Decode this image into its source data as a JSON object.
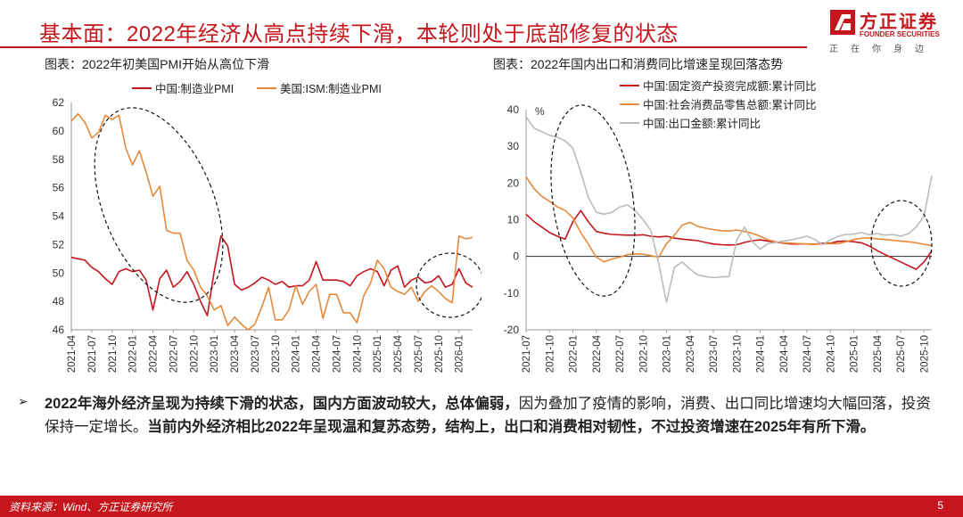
{
  "header": {
    "title": "基本面：2022年经济从高点持续下滑，本轮则处于底部修复的状态",
    "brand_cn": "方正证券",
    "brand_en": "FOUNDER SECURITIES",
    "brand_slogan": "正在你身边",
    "accent_color": "#c4161c"
  },
  "summary": {
    "bold1": "2022年海外经济呈现为持续下滑的状态，国内方面波动较大，总体偏弱，",
    "normal1": "因为叠加了疫情的影响，消费、出口同比增速均大幅回落，投资保持一定增长。",
    "bold2": "当前内外经济相比2022年呈现温和复苏态势，结构上，出口和消费相对韧性，不过投资增速在2025年有所下滑。"
  },
  "footer": {
    "source": "资料来源：Wind、方正证券研究所",
    "page": "5"
  },
  "chart_data": [
    {
      "type": "line",
      "caption": "图表：2022年初美国PMI开始从高位下滑",
      "ylim": [
        46,
        62
      ],
      "yticks": [
        46,
        48,
        50,
        52,
        54,
        56,
        58,
        60,
        62
      ],
      "xticks": [
        "2021-04",
        "2021-07",
        "2021-10",
        "2022-01",
        "2022-04",
        "2022-07",
        "2022-10",
        "2023-01",
        "2023-04",
        "2023-07",
        "2023-10",
        "2024-01",
        "2024-04",
        "2024-07",
        "2024-10",
        "2025-01",
        "2025-04",
        "2025-07",
        "2025-10",
        "2026-01"
      ],
      "x_start": "2021-04",
      "series": [
        {
          "name": "中国:制造业PMI",
          "color": "#c4161c",
          "values": [
            51.1,
            51.0,
            50.9,
            50.4,
            50.1,
            49.6,
            49.2,
            50.1,
            50.3,
            50.1,
            50.2,
            49.5,
            47.4,
            49.6,
            50.2,
            49.0,
            49.4,
            50.1,
            49.2,
            48.0,
            47.0,
            50.1,
            52.6,
            51.9,
            49.2,
            48.8,
            49.0,
            49.3,
            49.7,
            49.5,
            49.2,
            49.4,
            49.0,
            49.1,
            49.1,
            49.5,
            50.8,
            49.5,
            49.5,
            49.5,
            49.4,
            49.1,
            49.8,
            50.1,
            50.3,
            50.1,
            49.1,
            50.2,
            50.5,
            49.0,
            49.5,
            49.7,
            49.3,
            49.4,
            49.8,
            49.0,
            49.2,
            50.3,
            49.3,
            49.0
          ]
        },
        {
          "name": "美国:ISM:制造业PMI",
          "color": "#e8893a",
          "values": [
            60.7,
            61.2,
            60.6,
            59.5,
            59.9,
            61.1,
            60.8,
            61.1,
            58.8,
            57.6,
            58.6,
            57.1,
            55.4,
            56.1,
            53.0,
            52.8,
            52.8,
            50.9,
            50.2,
            49.0,
            48.4,
            47.4,
            47.7,
            46.3,
            46.9,
            46.4,
            46.0,
            46.4,
            47.6,
            49.0,
            46.7,
            46.7,
            47.4,
            49.1,
            47.8,
            48.7,
            49.2,
            46.8,
            48.5,
            48.5,
            47.2,
            47.2,
            46.5,
            48.4,
            49.3,
            50.9,
            50.3,
            49.0,
            48.7,
            48.5,
            49.0,
            48.0,
            48.7,
            49.1,
            48.7,
            48.2,
            47.9,
            52.6,
            52.4,
            52.5
          ]
        }
      ]
    },
    {
      "type": "line",
      "caption": "图表：2022年国内出口和消费同比增速呈现回落态势",
      "ylabel": "%",
      "ylim": [
        -20,
        40
      ],
      "yticks": [
        -20,
        -10,
        0,
        10,
        20,
        30,
        40
      ],
      "xticks": [
        "2021-07",
        "2021-10",
        "2022-01",
        "2022-04",
        "2022-07",
        "2022-10",
        "2023-01",
        "2023-04",
        "2023-07",
        "2023-10",
        "2024-01",
        "2024-04",
        "2024-07",
        "2024-10",
        "2025-01",
        "2025-04",
        "2025-07",
        "2025-10",
        "2026-01"
      ],
      "x_start": "2021-07",
      "series": [
        {
          "name": "中国:固定资产投资完成额:累计同比",
          "color": "#c4161c",
          "values": [
            11.5,
            9.5,
            8.0,
            6.5,
            5.5,
            4.7,
            9.5,
            12.5,
            9.4,
            6.8,
            6.3,
            6.0,
            5.9,
            5.8,
            5.8,
            5.9,
            5.5,
            5.3,
            5.5,
            5.0,
            4.7,
            4.5,
            4.3,
            3.8,
            3.4,
            3.2,
            3.1,
            3.2,
            3.8,
            4.3,
            4.5,
            4.2,
            3.9,
            3.6,
            3.4,
            3.4,
            3.4,
            3.3,
            3.6,
            3.6,
            4.1,
            4.2,
            4.0,
            3.7,
            2.8,
            1.6,
            0.5,
            -0.5,
            -1.5,
            -2.5,
            -3.5,
            -1.5,
            1.5
          ]
        },
        {
          "name": "中国:社会消费品零售总额:累计同比",
          "color": "#e8893a",
          "values": [
            21.7,
            18.5,
            16.4,
            15.0,
            13.5,
            12.5,
            10.5,
            6.5,
            3.3,
            -0.2,
            -1.5,
            -0.7,
            -0.2,
            0.5,
            0.7,
            0.6,
            0.2,
            -0.2,
            3.5,
            5.8,
            8.5,
            9.3,
            8.2,
            7.7,
            7.3,
            7.0,
            6.9,
            7.2,
            6.8,
            6.3,
            5.5,
            4.5,
            4.0,
            3.7,
            3.6,
            3.5,
            3.4,
            3.3,
            3.4,
            3.5,
            3.5,
            4.0,
            4.6,
            5.0,
            5.0,
            4.8,
            4.6,
            4.4,
            4.2,
            4.0,
            3.7,
            3.3,
            2.9
          ]
        },
        {
          "name": "中国:出口金额:累计同比",
          "color": "#bbbbbb",
          "values": [
            38.0,
            35.0,
            34.0,
            33.0,
            32.5,
            31.5,
            29.5,
            23.0,
            16.0,
            12.0,
            11.5,
            12.0,
            13.5,
            14.0,
            12.5,
            10.0,
            7.0,
            -2.0,
            -12.5,
            -3.0,
            -1.5,
            -3.5,
            -5.0,
            -5.5,
            -5.8,
            -5.6,
            -5.5,
            4.5,
            8.0,
            4.0,
            2.0,
            3.5,
            3.8,
            4.2,
            4.5,
            5.0,
            5.5,
            4.6,
            3.2,
            4.5,
            5.5,
            6.0,
            6.1,
            6.5,
            5.9,
            6.2,
            5.8,
            6.0,
            5.5,
            6.2,
            8.0,
            11.0,
            22.0
          ]
        }
      ]
    }
  ]
}
